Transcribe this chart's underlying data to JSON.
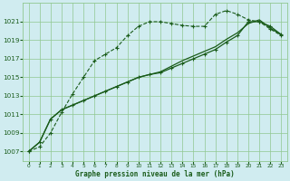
{
  "title": "Graphe pression niveau de la mer (hPa)",
  "background_color": "#d0ecf0",
  "grid_color": "#90c890",
  "line_color": "#1a5c1a",
  "xlim": [
    -0.5,
    23.5
  ],
  "ylim": [
    1006.0,
    1023.0
  ],
  "yticks": [
    1007,
    1009,
    1011,
    1013,
    1015,
    1017,
    1019,
    1021
  ],
  "xticks": [
    0,
    1,
    2,
    3,
    4,
    5,
    6,
    7,
    8,
    9,
    10,
    11,
    12,
    13,
    14,
    15,
    16,
    17,
    18,
    19,
    20,
    21,
    22,
    23
  ],
  "series1_x": [
    0,
    1,
    2,
    3,
    4,
    5,
    6,
    7,
    8,
    9,
    10,
    11,
    12,
    13,
    14,
    15,
    16,
    17,
    18,
    19,
    20,
    21,
    22,
    23
  ],
  "series1_y": [
    1007.0,
    1007.5,
    1009.0,
    1011.2,
    1013.2,
    1015.0,
    1016.8,
    1017.5,
    1018.2,
    1019.5,
    1020.5,
    1021.0,
    1021.0,
    1020.8,
    1020.6,
    1020.5,
    1020.5,
    1021.8,
    1022.2,
    1021.8,
    1021.2,
    1021.0,
    1020.2,
    1019.5
  ],
  "series2_x": [
    0,
    1,
    2,
    3,
    4,
    5,
    6,
    7,
    8,
    9,
    10,
    11,
    12,
    13,
    14,
    15,
    16,
    17,
    18,
    19,
    20,
    21,
    22,
    23
  ],
  "series2_y": [
    1007.0,
    1008.0,
    1010.5,
    1011.5,
    1012.0,
    1012.5,
    1013.0,
    1013.5,
    1014.0,
    1014.5,
    1015.0,
    1015.3,
    1015.5,
    1016.0,
    1016.5,
    1017.0,
    1017.5,
    1018.0,
    1018.8,
    1019.5,
    1021.0,
    1021.0,
    1020.5,
    1019.6
  ],
  "series3_x": [
    0,
    1,
    2,
    3,
    4,
    5,
    6,
    7,
    8,
    9,
    10,
    11,
    12,
    13,
    14,
    15,
    16,
    17,
    18,
    19,
    20,
    21,
    22,
    23
  ],
  "series3_y": [
    1007.0,
    1008.0,
    1010.5,
    1011.5,
    1012.0,
    1012.5,
    1013.0,
    1013.5,
    1014.0,
    1014.5,
    1015.0,
    1015.3,
    1015.6,
    1016.2,
    1016.8,
    1017.3,
    1017.8,
    1018.3,
    1019.1,
    1019.8,
    1020.8,
    1021.2,
    1020.3,
    1019.6
  ]
}
